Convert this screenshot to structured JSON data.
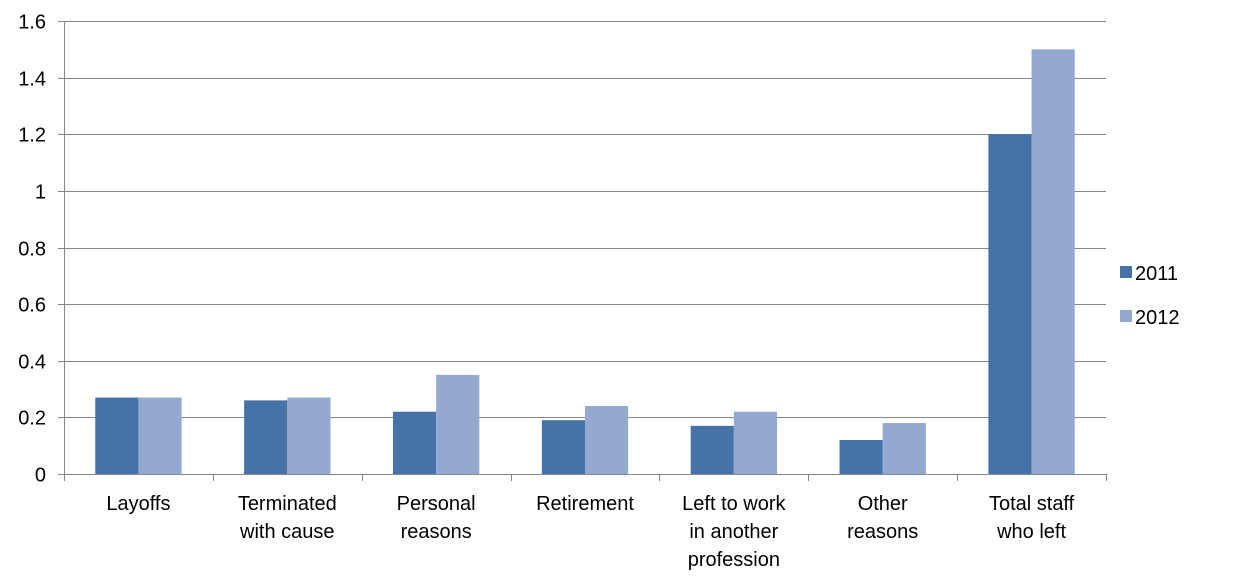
{
  "chart_data": {
    "type": "bar",
    "categories": [
      [
        "Layoffs"
      ],
      [
        "Terminated",
        "with cause"
      ],
      [
        "Personal",
        "reasons"
      ],
      [
        "Retirement"
      ],
      [
        "Left to work",
        "in another",
        "profession"
      ],
      [
        "Other",
        "reasons"
      ],
      [
        "Total staff",
        "who left"
      ]
    ],
    "series": [
      {
        "name": "2011",
        "color": "#4572a7",
        "values": [
          0.27,
          0.26,
          0.22,
          0.19,
          0.17,
          0.12,
          1.2
        ]
      },
      {
        "name": "2012",
        "color": "#93a9cf",
        "values": [
          0.27,
          0.27,
          0.35,
          0.24,
          0.22,
          0.18,
          1.5
        ]
      }
    ],
    "ylim": [
      0,
      1.6
    ],
    "yticks": [
      "0",
      "0.2",
      "0.4",
      "0.6",
      "0.8",
      "1",
      "1.2",
      "1.4",
      "1.6"
    ],
    "grid": true,
    "legend_position": "right"
  }
}
